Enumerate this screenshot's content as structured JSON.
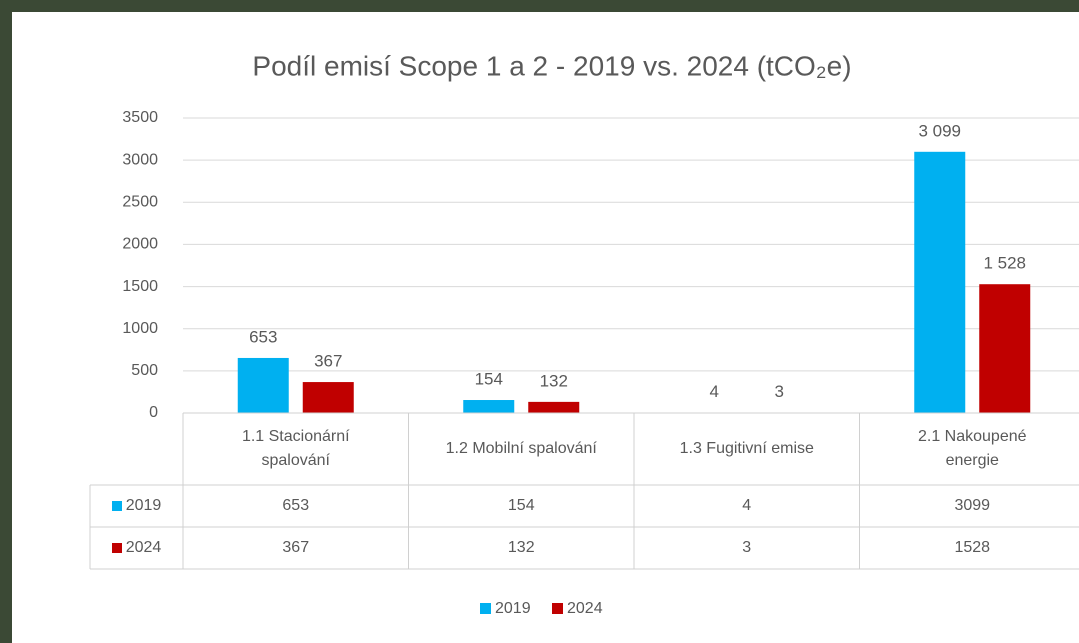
{
  "chart_data": {
    "type": "bar",
    "title": "Podíl emisí Scope 1 a 2 - 2019 vs. 2024 (tCO₂e)",
    "categories": [
      "1.1 Stacionární spalování",
      "1.2 Mobilní spalování",
      "1.3 Fugitivní emise",
      "2.1 Nakoupené energie"
    ],
    "series": [
      {
        "name": "2019",
        "color": "#00b0f0",
        "values": [
          653,
          154,
          4,
          3099
        ],
        "value_labels": [
          "653",
          "154",
          "4",
          "3 099"
        ]
      },
      {
        "name": "2024",
        "color": "#c00000",
        "values": [
          367,
          132,
          3,
          1528
        ],
        "value_labels": [
          "367",
          "132",
          "3",
          "1 528"
        ]
      }
    ],
    "ylim": [
      0,
      3500
    ],
    "yticks": [
      0,
      500,
      1000,
      1500,
      2000,
      2500,
      3000,
      3500
    ],
    "grid": true,
    "legend": "bottom",
    "data_table": true
  }
}
